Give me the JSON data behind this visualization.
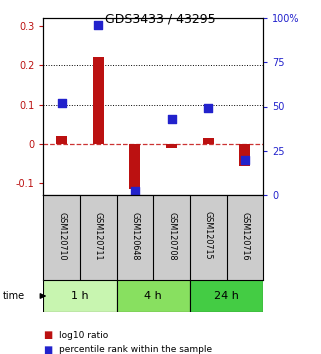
{
  "title": "GDS3433 / 43295",
  "samples": [
    "GSM120710",
    "GSM120711",
    "GSM120648",
    "GSM120708",
    "GSM120715",
    "GSM120716"
  ],
  "log10_ratio": [
    0.02,
    0.22,
    -0.115,
    -0.01,
    0.015,
    -0.055
  ],
  "percentile_rank": [
    52,
    96,
    2,
    43,
    49,
    20
  ],
  "time_groups": [
    {
      "label": "1 h",
      "samples": [
        0,
        1
      ],
      "color": "#c8f5b0"
    },
    {
      "label": "4 h",
      "samples": [
        2,
        3
      ],
      "color": "#88e060"
    },
    {
      "label": "24 h",
      "samples": [
        4,
        5
      ],
      "color": "#44cc44"
    }
  ],
  "ylim_left": [
    -0.13,
    0.32
  ],
  "ylim_right": [
    0,
    100
  ],
  "yticks_left": [
    -0.1,
    0.0,
    0.1,
    0.2,
    0.3
  ],
  "yticks_right": [
    0,
    25,
    50,
    75,
    100
  ],
  "ytick_labels_left": [
    "-0.1",
    "0",
    "0.1",
    "0.2",
    "0.3"
  ],
  "ytick_labels_right": [
    "0",
    "25",
    "50",
    "75",
    "100%"
  ],
  "hlines": [
    0.1,
    0.2
  ],
  "bar_color_red": "#bb1111",
  "dot_color_blue": "#2222cc",
  "zero_line_color": "#cc3333",
  "sample_box_color": "#cccccc",
  "legend_red_label": "log10 ratio",
  "legend_blue_label": "percentile rank within the sample",
  "bar_width": 0.3,
  "dot_size": 28
}
